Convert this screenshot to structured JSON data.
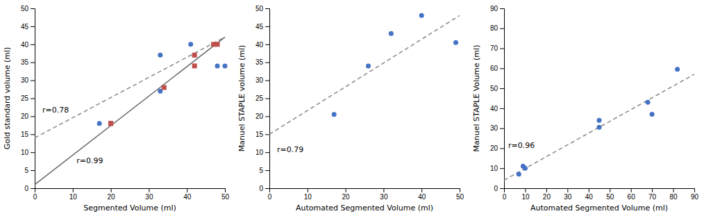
{
  "chart_data": [
    {
      "type": "scatter",
      "xlabel": "Segmented Volume (ml)",
      "ylabel": "Gold standard volume (ml)",
      "xlim": [
        0,
        50
      ],
      "ylim": [
        0,
        50
      ],
      "xticks": [
        0,
        10,
        20,
        30,
        40,
        50
      ],
      "yticks": [
        0,
        5,
        10,
        15,
        20,
        25,
        30,
        35,
        40,
        45,
        50
      ],
      "series": [
        {
          "type": "scatter",
          "color": "#4472C4",
          "marker": "circle",
          "x": [
            17,
            33,
            33,
            41,
            48,
            50
          ],
          "values": [
            18,
            37,
            27,
            40,
            34,
            34
          ]
        },
        {
          "type": "scatter",
          "color": "#C0504D",
          "marker": "square",
          "x": [
            20,
            20,
            34,
            42,
            42,
            47,
            48
          ],
          "values": [
            18,
            18,
            28,
            37,
            34,
            40,
            40
          ]
        },
        {
          "type": "line",
          "color": "#888888",
          "line_style": "dashed",
          "x": [
            0,
            50
          ],
          "values": [
            14,
            42
          ]
        },
        {
          "type": "line",
          "color": "#666666",
          "line_style": "solid",
          "x": [
            0,
            50
          ],
          "values": [
            1,
            42
          ]
        }
      ],
      "annotations": [
        {
          "text": "r=0.78",
          "x": 2,
          "y": 21
        },
        {
          "text": "r=0.99",
          "x": 11,
          "y": 7
        }
      ]
    },
    {
      "type": "scatter",
      "xlabel": "Automated Segmented Volume (ml)",
      "ylabel": "Manuel STAPLE volume (ml)",
      "xlim": [
        0,
        50
      ],
      "ylim": [
        0,
        50
      ],
      "xticks": [
        0,
        10,
        20,
        30,
        40,
        50
      ],
      "yticks": [
        0,
        5,
        10,
        15,
        20,
        25,
        30,
        35,
        40,
        45,
        50
      ],
      "series": [
        {
          "type": "scatter",
          "color": "#4472C4",
          "marker": "circle",
          "x": [
            17,
            26,
            32,
            40,
            49
          ],
          "values": [
            20.5,
            34,
            43,
            48,
            40.5
          ]
        },
        {
          "type": "line",
          "color": "#888888",
          "line_style": "dashed",
          "x": [
            0,
            50
          ],
          "values": [
            15,
            48
          ]
        }
      ],
      "annotations": [
        {
          "text": "r=0.79",
          "x": 2,
          "y": 10
        }
      ]
    },
    {
      "type": "scatter",
      "xlabel": "Automated Segmented Volume (ml)",
      "ylabel": "Manuel STAPLE Volume (ml)",
      "xlim": [
        0,
        90
      ],
      "ylim": [
        0,
        90
      ],
      "xticks": [
        0,
        10,
        20,
        30,
        40,
        50,
        60,
        70,
        80,
        90
      ],
      "yticks": [
        0,
        10,
        20,
        30,
        40,
        50,
        60,
        70,
        80,
        90
      ],
      "series": [
        {
          "type": "scatter",
          "color": "#4472C4",
          "marker": "circle",
          "x": [
            7,
            9,
            10,
            45,
            45,
            68,
            70,
            82
          ],
          "values": [
            7,
            11,
            10,
            34,
            30.5,
            43,
            37,
            59.5
          ]
        },
        {
          "type": "line",
          "color": "#888888",
          "line_style": "dashed",
          "x": [
            0,
            90
          ],
          "values": [
            4,
            57
          ]
        }
      ],
      "annotations": [
        {
          "text": "r=0.96",
          "x": 2,
          "y": 20
        }
      ]
    }
  ]
}
